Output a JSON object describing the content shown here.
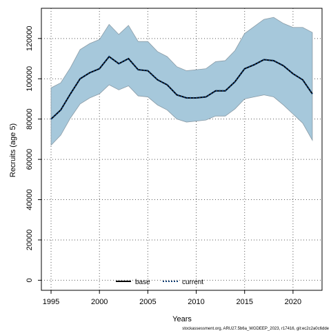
{
  "chart_data": {
    "type": "line",
    "xlabel": "Years",
    "ylabel": "Recruits (age 5)",
    "xlim": [
      1994,
      2023
    ],
    "ylim": [
      -5000,
      135000
    ],
    "x_ticks": [
      "1995",
      "2000",
      "2005",
      "2010",
      "2015",
      "2020"
    ],
    "y_ticks": [
      "0",
      "20000",
      "40000",
      "60000",
      "80000",
      "100000",
      "120000"
    ],
    "grid": true,
    "legend_position": "bottom-center",
    "x": [
      1995,
      1996,
      1997,
      1998,
      1999,
      2000,
      2001,
      2002,
      2003,
      2004,
      2005,
      2006,
      2007,
      2008,
      2009,
      2010,
      2011,
      2012,
      2013,
      2014,
      2015,
      2016,
      2017,
      2018,
      2019,
      2020,
      2021,
      2022
    ],
    "band": {
      "color": "#a6c8db",
      "edge_color": "#8a9ba6",
      "upper": [
        95500,
        98000,
        105500,
        114500,
        117500,
        119500,
        127000,
        122000,
        126500,
        118500,
        118500,
        113500,
        111000,
        106000,
        104000,
        104500,
        105000,
        108500,
        109000,
        114000,
        122500,
        126000,
        129500,
        130500,
        127500,
        125500,
        125500,
        123000
      ],
      "lower": [
        67000,
        72000,
        80500,
        87500,
        90500,
        92500,
        97000,
        94500,
        96500,
        91500,
        91000,
        87000,
        84500,
        80000,
        78500,
        79000,
        79500,
        81500,
        81500,
        85000,
        90000,
        91000,
        92000,
        91000,
        87000,
        82500,
        78000,
        69500
      ]
    },
    "series": [
      {
        "name": "base",
        "color": "#000000",
        "style": "solid",
        "values": [
          80000,
          84500,
          92500,
          100000,
          103000,
          105000,
          111000,
          107500,
          110000,
          104500,
          104000,
          99500,
          97000,
          92000,
          90500,
          90500,
          91000,
          94000,
          94000,
          98500,
          105000,
          107000,
          109500,
          109000,
          106500,
          102500,
          99500,
          92500
        ]
      },
      {
        "name": "current",
        "color": "#0b3b73",
        "style": "dotted",
        "values": [
          80000,
          84500,
          92500,
          100000,
          103000,
          105000,
          111000,
          107500,
          110000,
          104500,
          104000,
          99500,
          97000,
          92000,
          90500,
          90500,
          91000,
          94000,
          94000,
          98500,
          105000,
          107000,
          109500,
          109000,
          106500,
          102500,
          99500,
          92500
        ]
      }
    ]
  },
  "footer": "stockassessment.org, ARU27.5b6a_WGDEEP_2023, r17416, git:ec2c2a0c6dde"
}
